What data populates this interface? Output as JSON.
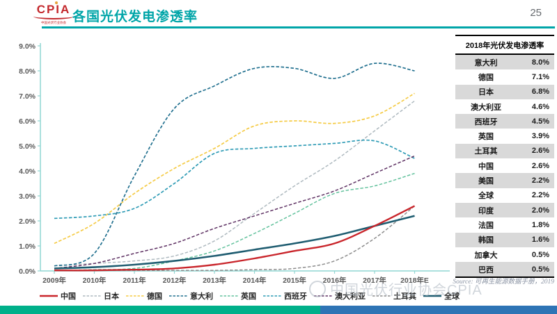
{
  "header": {
    "logo_text": "CPIA",
    "logo_subtext": "中国光伏行业协会",
    "title": "各国光伏发电渗透率",
    "page_number": "25"
  },
  "chart_data": {
    "type": "line",
    "title": "各国光伏发电渗透率",
    "xlabel": "",
    "ylabel": "",
    "ylim": [
      0,
      9
    ],
    "grid": false,
    "legend_position": "bottom",
    "x_tick_labels": [
      "2009年",
      "2010年",
      "2011年",
      "2012年",
      "2013年",
      "2014年",
      "2015年",
      "2016年",
      "2017年",
      "2018年E"
    ],
    "y_tick_labels": [
      "0.0%",
      "1.0%",
      "2.0%",
      "3.0%",
      "4.0%",
      "5.0%",
      "6.0%",
      "7.0%",
      "8.0%",
      "9.0%"
    ],
    "axis_color": "#8fd6d2",
    "tick_text_color": "#595959",
    "series": [
      {
        "key": "china",
        "name": "中国",
        "color": "#c9252b",
        "dash": "solid",
        "width": 2.4,
        "values": [
          0.0,
          0.02,
          0.05,
          0.1,
          0.25,
          0.5,
          0.8,
          1.1,
          1.8,
          2.6
        ]
      },
      {
        "key": "japan",
        "name": "日本",
        "color": "#aeb9bf",
        "dash": "dashed",
        "width": 1.5,
        "values": [
          0.2,
          0.3,
          0.4,
          0.6,
          1.2,
          2.3,
          3.4,
          4.4,
          5.6,
          6.8
        ]
      },
      {
        "key": "germany",
        "name": "德国",
        "color": "#f5cb45",
        "dash": "dashed",
        "width": 1.7,
        "values": [
          1.1,
          1.9,
          3.1,
          4.1,
          4.9,
          5.8,
          6.0,
          5.9,
          6.2,
          7.1
        ]
      },
      {
        "key": "italy",
        "name": "意大利",
        "color": "#21708f",
        "dash": "dashed",
        "width": 1.7,
        "values": [
          0.2,
          0.7,
          3.8,
          6.5,
          7.4,
          8.1,
          8.1,
          7.7,
          8.3,
          8.0
        ]
      },
      {
        "key": "uk",
        "name": "英国",
        "color": "#63c29d",
        "dash": "dashed",
        "width": 1.5,
        "values": [
          0.0,
          0.05,
          0.1,
          0.4,
          0.8,
          1.5,
          2.3,
          3.1,
          3.4,
          3.9
        ]
      },
      {
        "key": "spain",
        "name": "西班牙",
        "color": "#2e9bb5",
        "dash": "dashed",
        "width": 1.7,
        "values": [
          2.1,
          2.2,
          2.5,
          3.5,
          4.7,
          4.9,
          5.0,
          5.1,
          5.2,
          4.5
        ]
      },
      {
        "key": "australia",
        "name": "澳大利亚",
        "color": "#5e3163",
        "dash": "dashed",
        "width": 1.5,
        "values": [
          0.1,
          0.3,
          0.7,
          1.1,
          1.7,
          2.2,
          2.7,
          3.2,
          3.9,
          4.6
        ]
      },
      {
        "key": "turkey",
        "name": "土耳其",
        "color": "#8c8c8c",
        "dash": "dashed",
        "width": 1.5,
        "values": [
          0.0,
          0.0,
          0.0,
          0.0,
          0.0,
          0.05,
          0.1,
          0.4,
          1.3,
          2.6
        ]
      },
      {
        "key": "global",
        "name": "全球",
        "color": "#1e5c70",
        "dash": "solid",
        "width": 2.6,
        "values": [
          0.1,
          0.15,
          0.25,
          0.4,
          0.6,
          0.85,
          1.1,
          1.4,
          1.8,
          2.2
        ]
      }
    ]
  },
  "table": {
    "title": "2018年光伏发电渗透率",
    "rows": [
      {
        "key": "italy",
        "country": "意大利",
        "value": "8.0%"
      },
      {
        "key": "germany",
        "country": "德国",
        "value": "7.1%"
      },
      {
        "key": "japan",
        "country": "日本",
        "value": "6.8%"
      },
      {
        "key": "australia",
        "country": "澳大利亚",
        "value": "4.6%"
      },
      {
        "key": "spain",
        "country": "西班牙",
        "value": "4.5%"
      },
      {
        "key": "uk",
        "country": "英国",
        "value": "3.9%"
      },
      {
        "key": "turkey",
        "country": "土耳其",
        "value": "2.6%"
      },
      {
        "key": "china",
        "country": "中国",
        "value": "2.6%"
      },
      {
        "key": "usa",
        "country": "美国",
        "value": "2.2%"
      },
      {
        "key": "global",
        "country": "全球",
        "value": "2.2%"
      },
      {
        "key": "india",
        "country": "印度",
        "value": "2.0%"
      },
      {
        "key": "france",
        "country": "法国",
        "value": "1.8%"
      },
      {
        "key": "korea",
        "country": "韩国",
        "value": "1.6%"
      },
      {
        "key": "canada",
        "country": "加拿大",
        "value": "0.5%"
      },
      {
        "key": "brazil",
        "country": "巴西",
        "value": "0.5%"
      }
    ]
  },
  "source_note": "Source: 可再生能源数据手册，2019",
  "watermark": "中国光伏行业协会CPIA"
}
